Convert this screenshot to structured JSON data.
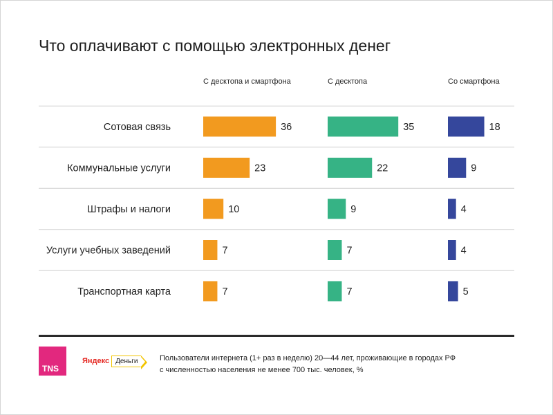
{
  "title": "Что оплачивают с помощью электронных денег",
  "chart_data": {
    "type": "bar",
    "orientation": "horizontal",
    "title": "Что оплачивают с помощью электронных денег",
    "categories": [
      "Сотовая связь",
      "Коммунальные услуги",
      "Штрафы и налоги",
      "Услуги учебных заведений",
      "Транспортная карта"
    ],
    "series": [
      {
        "name": "С десктопа и смартфона",
        "color": "#f29a1f",
        "values": [
          36,
          23,
          10,
          7,
          7
        ]
      },
      {
        "name": "С десктопа",
        "color": "#36b385",
        "values": [
          35,
          22,
          9,
          7,
          7
        ]
      },
      {
        "name": "Со смартфона",
        "color": "#35479c",
        "values": [
          18,
          9,
          4,
          4,
          5
        ]
      }
    ],
    "unit": "%"
  },
  "footer": {
    "tns_logo": "TNS",
    "yandex_brand": "Яндекс",
    "yandex_tag": "Деньги",
    "note_line1": "Пользователи интернета (1+ раз в неделю) 20—44 лет, проживающие в городах РФ",
    "note_line2": "с численностью населения не менее 700 тыс. человек, %"
  }
}
